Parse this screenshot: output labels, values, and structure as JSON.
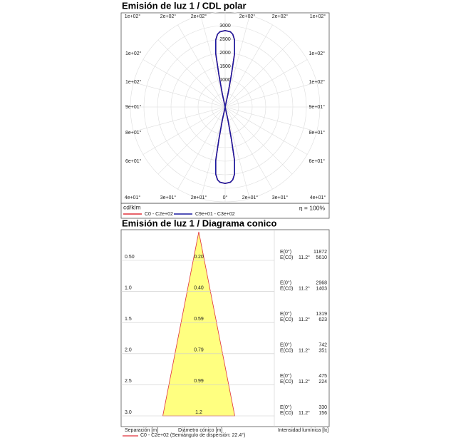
{
  "polar": {
    "title": "Emisión de luz 1 / CDL polar",
    "top_labels": [
      "1e+02°",
      "2e+02°",
      "2e+02°",
      "2e+02°",
      "2e+02°",
      "1e+02°"
    ],
    "bottom_labels": [
      "4e+01°",
      "3e+01°",
      "2e+01°",
      "0°",
      "2e+01°",
      "3e+01°",
      "4e+01°"
    ],
    "left_labels": [
      "1e+02°",
      "1e+02°",
      "9e+01°",
      "8e+01°",
      "6e+01°"
    ],
    "right_labels": [
      "1e+02°",
      "1e+02°",
      "9e+01°",
      "8e+01°",
      "6e+01°"
    ],
    "rlim": [
      0,
      3500
    ],
    "rticks": [
      1000,
      1500,
      2000,
      2500,
      3000
    ],
    "unit": "cd/klm",
    "efficiency": "η = 100%",
    "angles": [
      0,
      4,
      6,
      8,
      10,
      11,
      12,
      13
    ],
    "series": [
      {
        "name": "C0 - C2e+02",
        "color": "#e0303a",
        "values": [
          2820,
          2780,
          2700,
          2500,
          2000,
          1200,
          500,
          0
        ]
      },
      {
        "name": "C9e+01 - C3e+02",
        "color": "#1a1aa0",
        "values": [
          2820,
          2780,
          2700,
          2500,
          2000,
          1200,
          500,
          0
        ]
      }
    ]
  },
  "cone": {
    "title": "Emisión de luz 1 / Diagrama conico",
    "rows": [
      {
        "separation": "0.50",
        "diameter": "0.20",
        "e0_label": "E(0°)",
        "ec0_label": "E(C0)",
        "angle": "11.2°",
        "e0": "11872",
        "ec0": "5610"
      },
      {
        "separation": "1.0",
        "diameter": "0.40",
        "e0_label": "E(0°)",
        "ec0_label": "E(C0)",
        "angle": "11.2°",
        "e0": "2968",
        "ec0": "1403"
      },
      {
        "separation": "1.5",
        "diameter": "0.59",
        "e0_label": "E(0°)",
        "ec0_label": "E(C0)",
        "angle": "11.2°",
        "e0": "1319",
        "ec0": "623"
      },
      {
        "separation": "2.0",
        "diameter": "0.79",
        "e0_label": "E(0°)",
        "ec0_label": "E(C0)",
        "angle": "11.2°",
        "e0": "742",
        "ec0": "351"
      },
      {
        "separation": "2.5",
        "diameter": "0.99",
        "e0_label": "E(0°)",
        "ec0_label": "E(C0)",
        "angle": "11.2°",
        "e0": "475",
        "ec0": "224"
      },
      {
        "separation": "3.0",
        "diameter": "1.2",
        "e0_label": "E(0°)",
        "ec0_label": "E(C0)",
        "angle": "11.2°",
        "e0": "330",
        "ec0": "156"
      }
    ],
    "footer": [
      "Separación [m]",
      "Diámetro cónico [m]",
      "Intensidad lumínica [lx]"
    ],
    "legend": "C0 - C2e+02 (Semiángulo de dispersión: 22.4°)",
    "color": "#ffff80"
  }
}
